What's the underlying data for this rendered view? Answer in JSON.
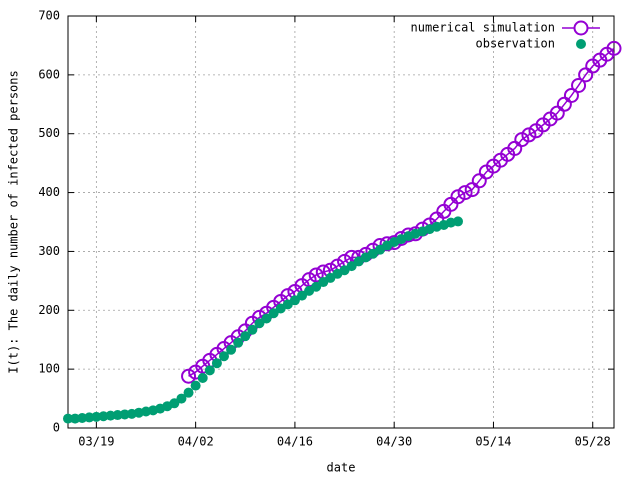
{
  "chart_data": {
    "type": "line",
    "x_label": "date",
    "y_label": "I(t): The daily number of infected persons",
    "xlim": [
      "03/15",
      "05/31"
    ],
    "xticks": [
      "03/19",
      "04/02",
      "04/16",
      "04/30",
      "05/14",
      "05/28"
    ],
    "ylim": [
      0,
      700
    ],
    "yticks": [
      0,
      100,
      200,
      300,
      400,
      500,
      600,
      700
    ],
    "grid": true,
    "legend": "top-right",
    "series": [
      {
        "name": "numerical simulation",
        "color": "#9400d3",
        "marker": "open-circle",
        "x": [
          "04/01",
          "04/02",
          "04/03",
          "04/04",
          "04/05",
          "04/06",
          "04/07",
          "04/08",
          "04/09",
          "04/10",
          "04/11",
          "04/12",
          "04/13",
          "04/14",
          "04/15",
          "04/16",
          "04/17",
          "04/18",
          "04/19",
          "04/20",
          "04/21",
          "04/22",
          "04/23",
          "04/24",
          "04/25",
          "04/26",
          "04/27",
          "04/28",
          "04/29",
          "04/30",
          "05/01",
          "05/02",
          "05/03",
          "05/04",
          "05/05",
          "05/06",
          "05/07",
          "05/08",
          "05/09",
          "05/10",
          "05/11",
          "05/12",
          "05/13",
          "05/14",
          "05/15",
          "05/16",
          "05/17",
          "05/18",
          "05/19",
          "05/20",
          "05/21",
          "05/22",
          "05/23",
          "05/24",
          "05/25",
          "05/26",
          "05/27",
          "05/28",
          "05/29",
          "05/30",
          "05/31"
        ],
        "values": [
          88,
          95,
          105,
          115,
          125,
          135,
          145,
          155,
          165,
          178,
          188,
          195,
          205,
          215,
          225,
          232,
          242,
          252,
          260,
          265,
          268,
          275,
          283,
          290,
          290,
          295,
          302,
          310,
          313,
          315,
          322,
          328,
          330,
          338,
          345,
          355,
          368,
          380,
          393,
          400,
          405,
          420,
          435,
          445,
          455,
          465,
          475,
          490,
          498,
          505,
          515,
          525,
          535,
          550,
          565,
          582,
          600,
          615,
          625,
          635,
          645
        ]
      },
      {
        "name": "observation",
        "color": "#009e73",
        "marker": "filled-circle",
        "x": [
          "03/15",
          "03/16",
          "03/17",
          "03/18",
          "03/19",
          "03/20",
          "03/21",
          "03/22",
          "03/23",
          "03/24",
          "03/25",
          "03/26",
          "03/27",
          "03/28",
          "03/29",
          "03/30",
          "03/31",
          "04/01",
          "04/02",
          "04/03",
          "04/04",
          "04/05",
          "04/06",
          "04/07",
          "04/08",
          "04/09",
          "04/10",
          "04/11",
          "04/12",
          "04/13",
          "04/14",
          "04/15",
          "04/16",
          "04/17",
          "04/18",
          "04/19",
          "04/20",
          "04/21",
          "04/22",
          "04/23",
          "04/24",
          "04/25",
          "04/26",
          "04/27",
          "04/28",
          "04/29",
          "04/30",
          "05/01",
          "05/02",
          "05/03",
          "05/04",
          "05/05",
          "05/06",
          "05/07",
          "05/08",
          "05/09"
        ],
        "values": [
          16,
          16,
          17,
          18,
          19,
          20,
          21,
          22,
          23,
          24,
          26,
          28,
          30,
          33,
          37,
          42,
          50,
          60,
          72,
          85,
          98,
          110,
          122,
          133,
          145,
          156,
          167,
          178,
          186,
          195,
          203,
          210,
          217,
          225,
          233,
          240,
          248,
          255,
          262,
          268,
          275,
          283,
          290,
          296,
          303,
          310,
          316,
          321,
          326,
          330,
          334,
          338,
          342,
          345,
          349,
          351
        ]
      }
    ]
  }
}
